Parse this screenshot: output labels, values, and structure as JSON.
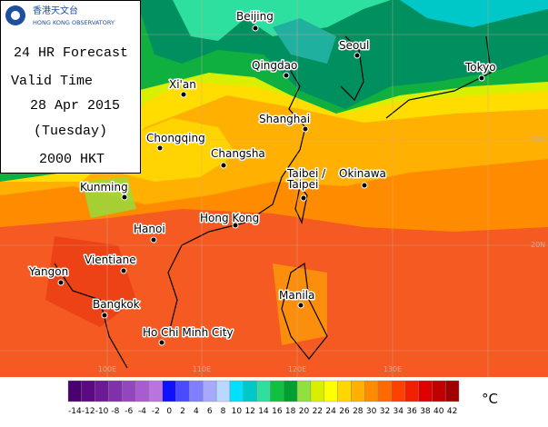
{
  "header": {
    "logo_cn": "香港天文台",
    "logo_en": "HONG KONG OBSERVATORY",
    "lines": [
      "24 HR Forecast",
      "Valid Time",
      "28 Apr 2015",
      "(Tuesday)",
      "2000 HKT"
    ]
  },
  "map": {
    "cities": [
      {
        "lines": [
          "Beijing"
        ]
      },
      {
        "lines": [
          "Seoul"
        ]
      },
      {
        "lines": [
          "Qingdao"
        ]
      },
      {
        "lines": [
          "Tokyo"
        ]
      },
      {
        "lines": [
          "Xi'an"
        ]
      },
      {
        "lines": [
          "Shanghai"
        ]
      },
      {
        "lines": [
          "Chongqing"
        ]
      },
      {
        "lines": [
          "Changsha"
        ]
      },
      {
        "lines": [
          "Okinawa"
        ]
      },
      {
        "lines": [
          "Taibei /",
          "Taipei"
        ]
      },
      {
        "lines": [
          "Kunming"
        ]
      },
      {
        "lines": [
          "Hong Kong"
        ]
      },
      {
        "lines": [
          "Hanoi"
        ]
      },
      {
        "lines": [
          "Vientiane"
        ]
      },
      {
        "lines": [
          "Yangon"
        ]
      },
      {
        "lines": [
          "Manila"
        ]
      },
      {
        "lines": [
          "Bangkok"
        ]
      },
      {
        "lines": [
          "Ho Chi Minh City"
        ]
      }
    ],
    "longitude_labels": [
      "100E",
      "110E",
      "120E",
      "130E"
    ],
    "latitude_labels": [
      "30N",
      "20N"
    ]
  },
  "legend": {
    "unit": "°C",
    "bins": [
      {
        "value": -14,
        "color": "#4b0070"
      },
      {
        "value": -12,
        "color": "#5c0a82"
      },
      {
        "value": -10,
        "color": "#6e1a96"
      },
      {
        "value": -8,
        "color": "#8030aa"
      },
      {
        "value": -6,
        "color": "#9446bd"
      },
      {
        "value": -4,
        "color": "#a85ccf"
      },
      {
        "value": -2,
        "color": "#bb74de"
      },
      {
        "value": 0,
        "color": "#1010ff"
      },
      {
        "value": 2,
        "color": "#4a4aff"
      },
      {
        "value": 4,
        "color": "#7f7fff"
      },
      {
        "value": 6,
        "color": "#a8a8ff"
      },
      {
        "value": 8,
        "color": "#b8d8ff"
      },
      {
        "value": 10,
        "color": "#00e0ff"
      },
      {
        "value": 12,
        "color": "#00c8c8"
      },
      {
        "value": 14,
        "color": "#2de0a0"
      },
      {
        "value": 16,
        "color": "#10c040"
      },
      {
        "value": 18,
        "color": "#00a030"
      },
      {
        "value": 20,
        "color": "#90e040"
      },
      {
        "value": 22,
        "color": "#d8f000"
      },
      {
        "value": 24,
        "color": "#ffff00"
      },
      {
        "value": 26,
        "color": "#ffd700"
      },
      {
        "value": 28,
        "color": "#ffb000"
      },
      {
        "value": 30,
        "color": "#ff8c00"
      },
      {
        "value": 32,
        "color": "#ff6a00"
      },
      {
        "value": 34,
        "color": "#ff4000"
      },
      {
        "value": 36,
        "color": "#f02000"
      },
      {
        "value": 38,
        "color": "#e00000"
      },
      {
        "value": 40,
        "color": "#c00000"
      },
      {
        "value": 42,
        "color": "#a00000"
      }
    ]
  }
}
